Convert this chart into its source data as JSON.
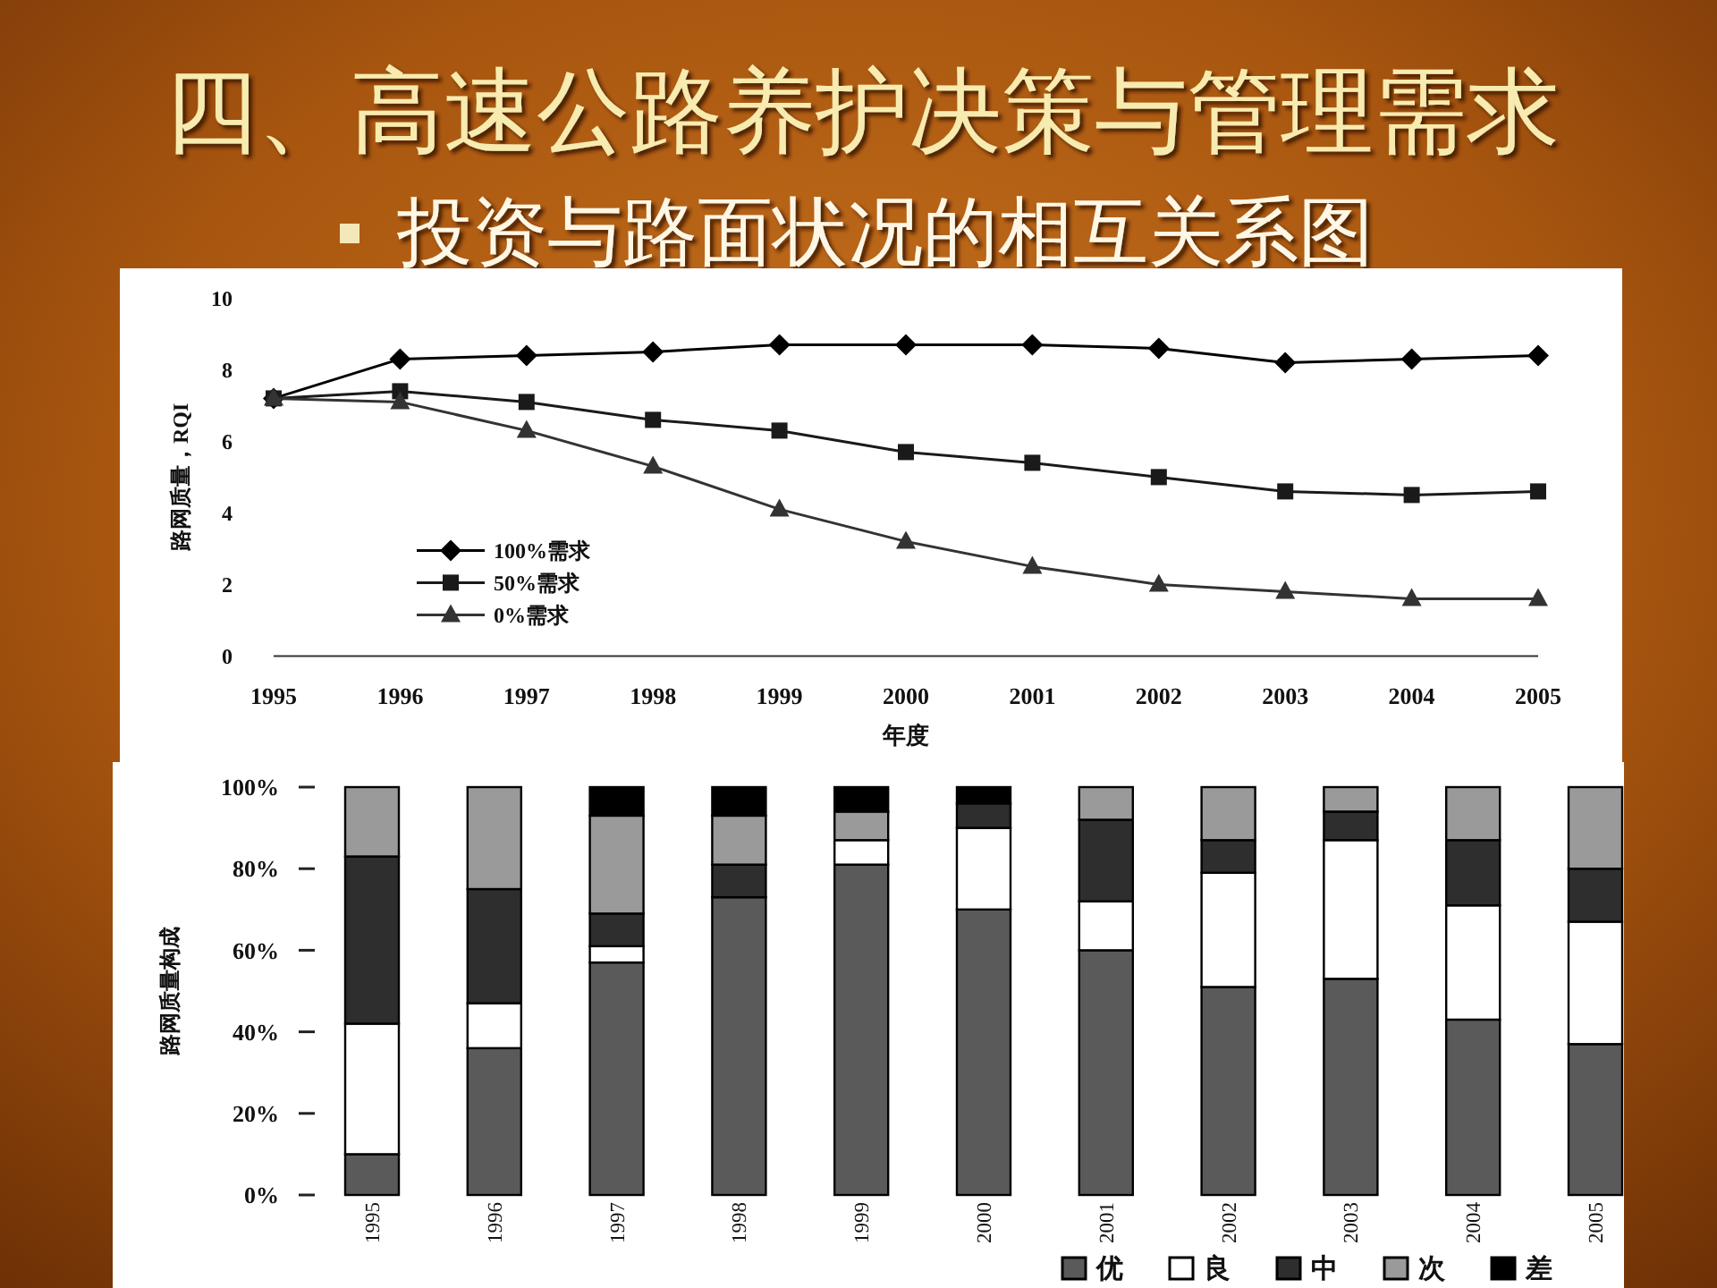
{
  "chart_data": [
    {
      "type": "line",
      "title": "四、高速公路养护决策与管理需求",
      "subtitle": "投资与路面状况的相互关系图",
      "xlabel": "年度",
      "ylabel": "路网质量，RQI",
      "categories": [
        "1995",
        "1996",
        "1997",
        "1998",
        "1999",
        "2000",
        "2001",
        "2002",
        "2003",
        "2004",
        "2005"
      ],
      "ylim": [
        0,
        10
      ],
      "yticks": [
        0,
        2,
        4,
        6,
        8,
        10
      ],
      "legend": "bottom left",
      "series": [
        {
          "name": "100%需求",
          "color": "#000000",
          "marker": "diamond",
          "values": [
            7.2,
            8.3,
            8.4,
            8.5,
            8.7,
            8.7,
            8.7,
            8.6,
            8.2,
            8.3,
            8.4
          ]
        },
        {
          "name": "50%需求",
          "color": "#1a1a1a",
          "marker": "square",
          "values": [
            7.2,
            7.4,
            7.1,
            6.6,
            6.3,
            5.7,
            5.4,
            5.0,
            4.6,
            4.5,
            4.6
          ]
        },
        {
          "name": "0%需求",
          "color": "#333333",
          "marker": "triangle",
          "values": [
            7.2,
            7.1,
            6.3,
            5.3,
            4.1,
            3.2,
            2.5,
            2.0,
            1.8,
            1.6,
            1.6
          ]
        }
      ]
    },
    {
      "type": "bar",
      "stacked": true,
      "ylabel": "路网质量构成",
      "categories": [
        "1995",
        "1996",
        "1997",
        "1998",
        "1999",
        "2000",
        "2001",
        "2002",
        "2003",
        "2004",
        "2005"
      ],
      "ylim": [
        0,
        100
      ],
      "yticks": [
        {
          "value": 0,
          "label": "0%"
        },
        {
          "value": 20,
          "label": "20%"
        },
        {
          "value": 40,
          "label": "40%"
        },
        {
          "value": 60,
          "label": "60%"
        },
        {
          "value": 80,
          "label": "80%"
        },
        {
          "value": 100,
          "label": "100%"
        }
      ],
      "legend": "bottom right",
      "series": [
        {
          "name": "优",
          "color": "#5a5a5a",
          "values": [
            10,
            36,
            57,
            73,
            81,
            70,
            60,
            51,
            53,
            43,
            37
          ]
        },
        {
          "name": "良",
          "color": "#ffffff",
          "values": [
            32,
            11,
            4,
            0,
            6,
            20,
            12,
            28,
            34,
            28,
            30
          ]
        },
        {
          "name": "中",
          "color": "#2e2e2e",
          "values": [
            41,
            28,
            8,
            8,
            0,
            6,
            20,
            8,
            7,
            16,
            13
          ]
        },
        {
          "name": "次",
          "color": "#9a9a9a",
          "values": [
            17,
            25,
            24,
            12,
            7,
            0,
            8,
            13,
            6,
            13,
            20
          ]
        },
        {
          "name": "差",
          "color": "#000000",
          "values": [
            0,
            0,
            7,
            7,
            6,
            4,
            0,
            0,
            0,
            0,
            0
          ]
        }
      ]
    }
  ]
}
